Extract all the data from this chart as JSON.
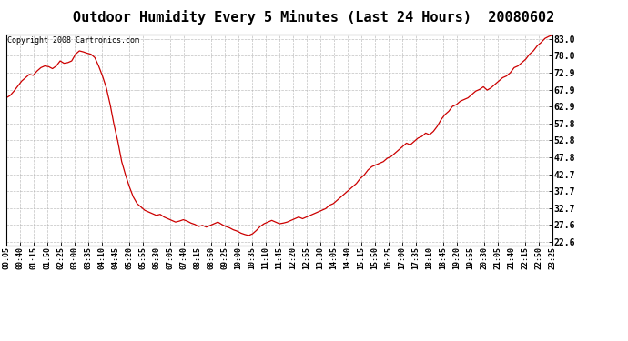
{
  "title": "Outdoor Humidity Every 5 Minutes (Last 24 Hours)  20080602",
  "copyright": "Copyright 2008 Cartronics.com",
  "line_color": "#cc0000",
  "background_color": "#ffffff",
  "grid_color": "#b0b0b0",
  "title_fontsize": 11,
  "ylabel_values": [
    83.0,
    78.0,
    72.9,
    67.9,
    62.9,
    57.8,
    52.8,
    47.8,
    42.7,
    37.7,
    32.7,
    27.6,
    22.6
  ],
  "ylim": [
    21.5,
    84.5
  ],
  "x_tick_labels": [
    "00:05",
    "00:40",
    "01:15",
    "01:50",
    "02:25",
    "03:00",
    "03:35",
    "04:10",
    "04:45",
    "05:20",
    "05:55",
    "06:30",
    "07:05",
    "07:40",
    "08:15",
    "08:50",
    "09:25",
    "10:00",
    "10:35",
    "11:10",
    "11:45",
    "12:20",
    "12:55",
    "13:30",
    "14:05",
    "14:40",
    "15:15",
    "15:50",
    "16:25",
    "17:00",
    "17:35",
    "18:10",
    "18:45",
    "19:20",
    "19:55",
    "20:30",
    "21:05",
    "21:40",
    "22:15",
    "22:50",
    "23:25"
  ],
  "humidity_values": [
    65.5,
    66.2,
    67.5,
    69.0,
    70.5,
    71.5,
    72.5,
    72.2,
    73.5,
    74.5,
    75.0,
    74.8,
    74.2,
    75.0,
    76.5,
    75.8,
    76.0,
    76.5,
    78.5,
    79.5,
    79.2,
    78.8,
    78.5,
    77.5,
    75.0,
    72.0,
    68.5,
    63.5,
    57.5,
    52.5,
    46.5,
    42.5,
    39.0,
    36.0,
    34.0,
    33.0,
    32.0,
    31.5,
    31.0,
    30.5,
    30.8,
    30.0,
    29.5,
    29.0,
    28.5,
    28.8,
    29.2,
    28.8,
    28.2,
    27.8,
    27.2,
    27.5,
    27.0,
    27.5,
    28.0,
    28.5,
    27.8,
    27.2,
    26.8,
    26.2,
    25.8,
    25.2,
    24.8,
    24.5,
    25.0,
    26.0,
    27.2,
    28.0,
    28.5,
    29.0,
    28.5,
    28.0,
    28.2,
    28.5,
    29.0,
    29.5,
    30.0,
    29.5,
    30.0,
    30.5,
    31.0,
    31.5,
    32.0,
    32.5,
    33.5,
    34.0,
    35.0,
    36.0,
    37.0,
    38.0,
    39.0,
    40.0,
    41.5,
    42.5,
    44.0,
    45.0,
    45.5,
    46.0,
    46.5,
    47.5,
    48.0,
    49.0,
    50.0,
    51.0,
    52.0,
    51.5,
    52.5,
    53.5,
    54.0,
    55.0,
    54.5,
    55.5,
    57.0,
    59.0,
    60.5,
    61.5,
    63.0,
    63.5,
    64.5,
    65.0,
    65.5,
    66.5,
    67.5,
    68.0,
    68.8,
    67.8,
    68.5,
    69.5,
    70.5,
    71.5,
    72.0,
    73.0,
    74.5,
    75.0,
    76.0,
    77.0,
    78.5,
    79.5,
    81.0,
    82.0,
    83.2,
    83.8,
    84.2
  ]
}
